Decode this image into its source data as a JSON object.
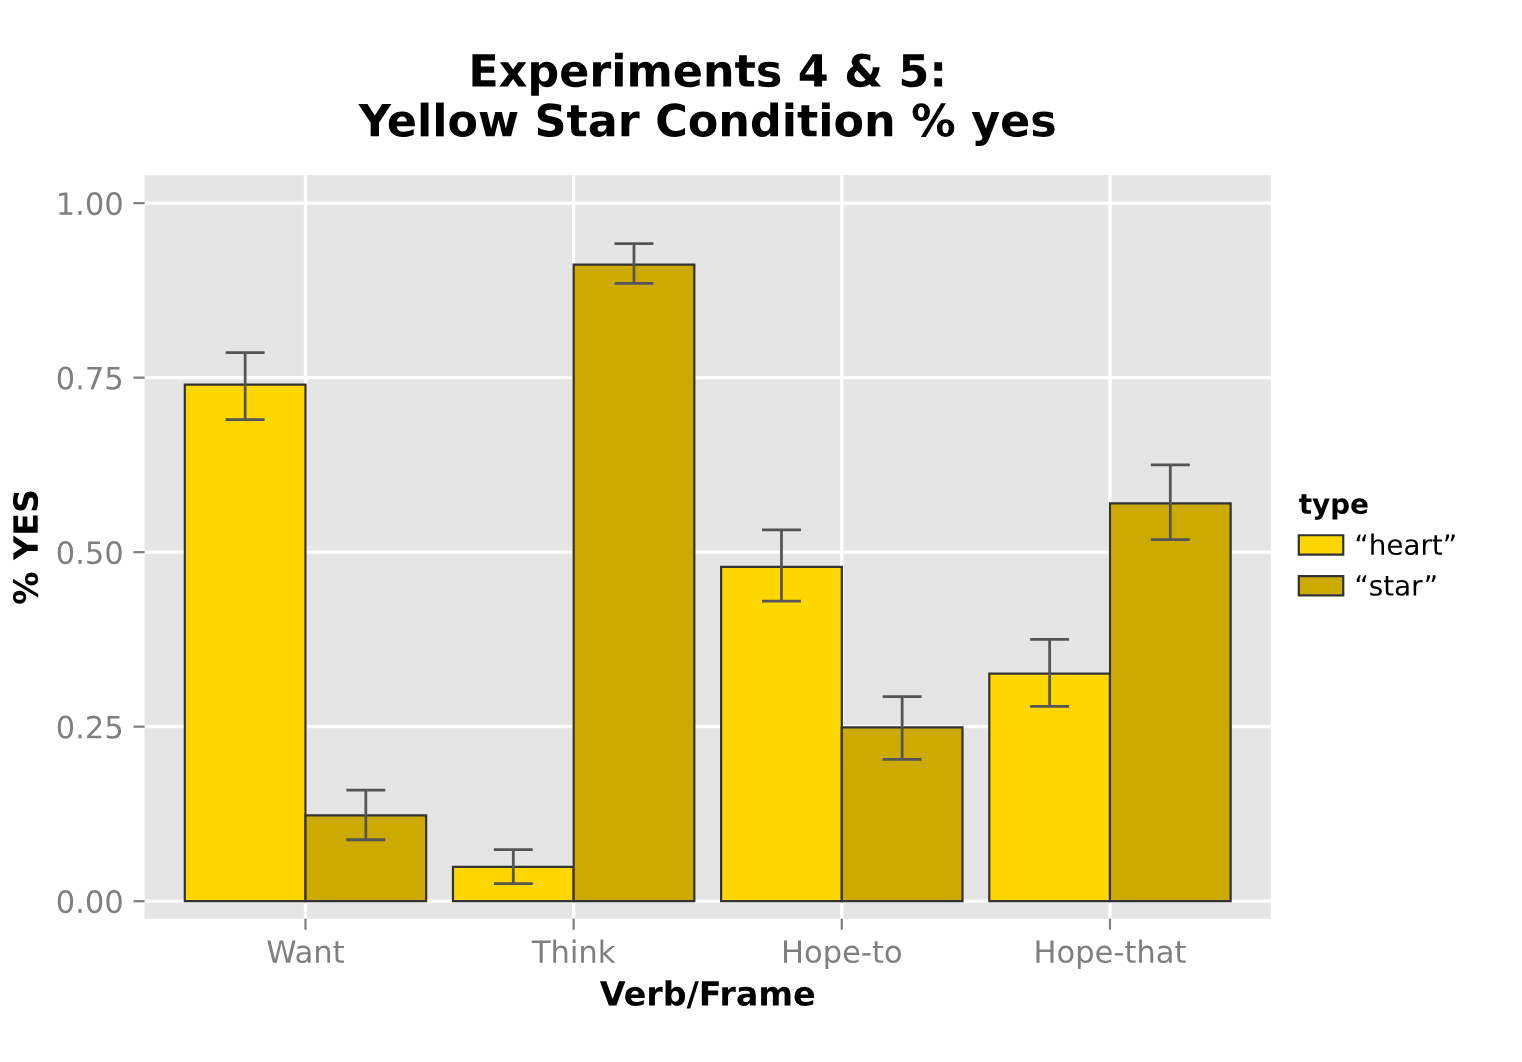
{
  "chart_data": {
    "type": "bar",
    "title": "Experiments 4 & 5:\nYellow Star Condition % yes",
    "xlabel": "Verb/Frame",
    "ylabel": "% YES",
    "legend_title": "type",
    "categories": [
      "Want",
      "Think",
      "Hope-to",
      "Hope-that"
    ],
    "series": [
      {
        "name": "“heart”",
        "color": "#ffd700",
        "values": [
          0.74,
          0.049,
          0.479,
          0.326
        ],
        "errors": [
          [
            0.69,
            0.786
          ],
          [
            0.025,
            0.074
          ],
          [
            0.43,
            0.532
          ],
          [
            0.279,
            0.375
          ]
        ]
      },
      {
        "name": "“star”",
        "color": "#ccaa00",
        "values": [
          0.123,
          0.912,
          0.249,
          0.57
        ],
        "errors": [
          [
            0.088,
            0.159
          ],
          [
            0.885,
            0.942
          ],
          [
            0.203,
            0.293
          ],
          [
            0.518,
            0.625
          ]
        ]
      }
    ],
    "ylim": [
      -0.025,
      1.04
    ],
    "yticks": [
      {
        "value": 0,
        "label": "0.00"
      },
      {
        "value": 0.25,
        "label": "0.25"
      },
      {
        "value": 0.5,
        "label": "0.50"
      },
      {
        "value": 0.75,
        "label": "0.75"
      },
      {
        "value": 1,
        "label": "1.00"
      }
    ],
    "grid": true,
    "legend": "right"
  }
}
